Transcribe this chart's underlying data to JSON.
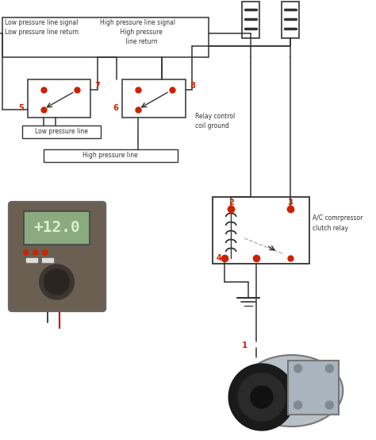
{
  "bg_color": "#ffffff",
  "red_color": "#cc2200",
  "dark_color": "#333333",
  "gray_color": "#aaaaaa",
  "labels": {
    "low_pressure_signal": "Low pressure line signal\nLow pressure line return",
    "high_pressure_signal": "High pressure line signal\n    High pressure\n    line return",
    "relay_control": "Relay control\ncoil ground",
    "low_pressure_line": "Low pressure line",
    "high_pressure_line": "High pressure line",
    "ac_relay": "A/C comrpressor\nclutch relay",
    "node5": "5",
    "node6": "6",
    "node7": "7",
    "node8": "8",
    "node1": "1",
    "node2": "2",
    "node3": "3",
    "node4": "4",
    "multimeter_reading": "+12.0"
  }
}
